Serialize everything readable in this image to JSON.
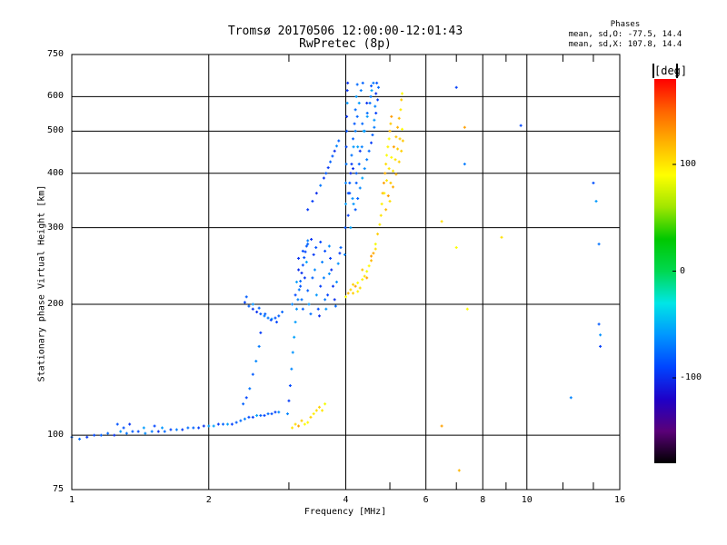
{
  "chart_data": {
    "type": "scatter",
    "title": "Tromsø 20170506 12:00:00-12:01:43",
    "subtitle": "RwPretec (8p)",
    "xlabel": "Frequency [MHz]",
    "ylabel": "Stationary phase Virtual Height [km]",
    "x_scale": "log",
    "y_scale": "log",
    "xlim": [
      1,
      16
    ],
    "ylim": [
      75,
      750
    ],
    "x_ticks": [
      1,
      2,
      4,
      6,
      8,
      10,
      16
    ],
    "x_tick_labels": [
      "1",
      "2",
      "4",
      "6",
      "8",
      "10",
      "16"
    ],
    "x_grid": [
      2,
      4,
      6,
      8,
      10
    ],
    "x_minor_ticks": [
      3,
      5,
      7,
      9,
      12,
      14
    ],
    "y_ticks": [
      75,
      100,
      200,
      300,
      400,
      500,
      600,
      750
    ],
    "y_tick_labels": [
      "75",
      "100",
      "200",
      "300",
      "400",
      "500",
      "600",
      "750"
    ],
    "y_grid": [
      100,
      200,
      300,
      400,
      500,
      600
    ],
    "grid": true,
    "legend_header": "Phases",
    "stats": [
      "mean, sd,O: -77.5, 14.4",
      "mean, sd,X: 107.8, 14.4"
    ],
    "colorbar": {
      "label": "[deg]",
      "range": [
        -180,
        180
      ],
      "ticks": [
        100,
        0,
        -100
      ],
      "tick_labels": [
        "100",
        "0",
        "-100"
      ],
      "colormap": [
        "#000000",
        "#5a0078",
        "#1e00c8",
        "#0044ff",
        "#0096ff",
        "#00e6e6",
        "#00d850",
        "#00c800",
        "#a0e600",
        "#ffff00",
        "#ffb400",
        "#ff6400",
        "#ff0000"
      ]
    },
    "series": [
      {
        "name": "O",
        "phase_mean": -77.5,
        "phase_sd": 14.4,
        "points": [
          [
            1.0,
            99
          ],
          [
            1.04,
            98
          ],
          [
            1.08,
            99
          ],
          [
            1.12,
            100
          ],
          [
            1.16,
            100
          ],
          [
            1.2,
            101
          ],
          [
            1.24,
            100
          ],
          [
            1.28,
            102
          ],
          [
            1.32,
            101
          ],
          [
            1.36,
            102
          ],
          [
            1.4,
            102
          ],
          [
            1.45,
            101
          ],
          [
            1.5,
            102
          ],
          [
            1.55,
            102
          ],
          [
            1.6,
            102
          ],
          [
            1.65,
            103
          ],
          [
            1.7,
            103
          ],
          [
            1.75,
            103
          ],
          [
            1.8,
            104
          ],
          [
            1.85,
            104
          ],
          [
            1.9,
            104
          ],
          [
            1.95,
            105
          ],
          [
            2.0,
            105
          ],
          [
            2.05,
            105
          ],
          [
            2.1,
            106
          ],
          [
            2.15,
            106
          ],
          [
            2.2,
            106
          ],
          [
            2.25,
            106
          ],
          [
            2.3,
            107
          ],
          [
            2.35,
            108
          ],
          [
            2.4,
            109
          ],
          [
            2.45,
            110
          ],
          [
            2.5,
            110
          ],
          [
            2.55,
            111
          ],
          [
            2.6,
            111
          ],
          [
            2.65,
            111
          ],
          [
            2.7,
            112
          ],
          [
            2.75,
            112
          ],
          [
            2.8,
            113
          ],
          [
            2.85,
            113
          ],
          [
            1.26,
            106
          ],
          [
            1.3,
            104
          ],
          [
            1.34,
            106
          ],
          [
            1.44,
            104
          ],
          [
            1.52,
            105
          ],
          [
            1.58,
            104
          ],
          [
            2.38,
            118
          ],
          [
            2.42,
            122
          ],
          [
            2.46,
            128
          ],
          [
            2.5,
            138
          ],
          [
            2.54,
            148
          ],
          [
            2.58,
            160
          ],
          [
            2.6,
            172
          ],
          [
            2.4,
            202
          ],
          [
            2.45,
            198
          ],
          [
            2.5,
            195
          ],
          [
            2.55,
            192
          ],
          [
            2.6,
            190
          ],
          [
            2.65,
            188
          ],
          [
            2.7,
            186
          ],
          [
            2.75,
            185
          ],
          [
            2.8,
            186
          ],
          [
            2.85,
            188
          ],
          [
            2.9,
            192
          ],
          [
            2.42,
            208
          ],
          [
            2.5,
            200
          ],
          [
            2.58,
            196
          ],
          [
            2.66,
            190
          ],
          [
            2.74,
            184
          ],
          [
            2.82,
            182
          ],
          [
            2.98,
            112
          ],
          [
            3.0,
            120
          ],
          [
            3.02,
            130
          ],
          [
            3.04,
            142
          ],
          [
            3.06,
            155
          ],
          [
            3.08,
            168
          ],
          [
            3.1,
            182
          ],
          [
            3.12,
            195
          ],
          [
            3.14,
            205
          ],
          [
            3.16,
            216
          ],
          [
            3.18,
            226
          ],
          [
            3.2,
            236
          ],
          [
            3.22,
            246
          ],
          [
            3.24,
            256
          ],
          [
            3.26,
            264
          ],
          [
            3.28,
            272
          ],
          [
            3.3,
            280
          ],
          [
            3.05,
            200
          ],
          [
            3.1,
            210
          ],
          [
            3.12,
            225
          ],
          [
            3.15,
            240
          ],
          [
            3.18,
            220
          ],
          [
            3.2,
            205
          ],
          [
            3.22,
            195
          ],
          [
            3.25,
            230
          ],
          [
            3.28,
            250
          ],
          [
            3.3,
            215
          ],
          [
            3.32,
            200
          ],
          [
            3.35,
            190
          ],
          [
            3.38,
            230
          ],
          [
            3.4,
            260
          ],
          [
            3.42,
            240
          ],
          [
            3.45,
            210
          ],
          [
            3.48,
            195
          ],
          [
            3.5,
            188
          ],
          [
            3.52,
            220
          ],
          [
            3.55,
            250
          ],
          [
            3.58,
            230
          ],
          [
            3.6,
            205
          ],
          [
            3.62,
            195
          ],
          [
            3.65,
            210
          ],
          [
            3.68,
            235
          ],
          [
            3.7,
            255
          ],
          [
            3.72,
            240
          ],
          [
            3.75,
            220
          ],
          [
            3.78,
            205
          ],
          [
            3.8,
            198
          ],
          [
            3.82,
            225
          ],
          [
            3.85,
            248
          ],
          [
            3.88,
            262
          ],
          [
            3.9,
            270
          ],
          [
            3.15,
            255
          ],
          [
            3.22,
            265
          ],
          [
            3.3,
            275
          ],
          [
            3.36,
            282
          ],
          [
            3.44,
            270
          ],
          [
            3.52,
            278
          ],
          [
            3.6,
            265
          ],
          [
            3.68,
            272
          ],
          [
            3.3,
            330
          ],
          [
            3.38,
            345
          ],
          [
            3.45,
            360
          ],
          [
            3.52,
            375
          ],
          [
            3.58,
            390
          ],
          [
            3.62,
            400
          ],
          [
            3.66,
            412
          ],
          [
            3.7,
            425
          ],
          [
            3.74,
            438
          ],
          [
            3.78,
            450
          ],
          [
            3.82,
            462
          ],
          [
            3.86,
            475
          ],
          [
            3.98,
            260
          ],
          [
            3.99,
            300
          ],
          [
            4.0,
            340
          ],
          [
            4.0,
            380
          ],
          [
            4.01,
            420
          ],
          [
            4.01,
            460
          ],
          [
            4.02,
            500
          ],
          [
            4.02,
            540
          ],
          [
            4.03,
            580
          ],
          [
            4.03,
            620
          ],
          [
            4.04,
            645
          ],
          [
            4.05,
            320
          ],
          [
            4.08,
            360
          ],
          [
            4.1,
            400
          ],
          [
            4.12,
            440
          ],
          [
            4.15,
            480
          ],
          [
            4.18,
            520
          ],
          [
            4.2,
            560
          ],
          [
            4.22,
            600
          ],
          [
            4.24,
            640
          ],
          [
            4.08,
            380
          ],
          [
            4.12,
            420
          ],
          [
            4.16,
            460
          ],
          [
            4.2,
            500
          ],
          [
            4.24,
            540
          ],
          [
            4.28,
            580
          ],
          [
            4.32,
            620
          ],
          [
            4.36,
            645
          ],
          [
            4.1,
            300
          ],
          [
            4.16,
            340
          ],
          [
            4.22,
            380
          ],
          [
            4.28,
            420
          ],
          [
            4.34,
            460
          ],
          [
            4.4,
            500
          ],
          [
            4.46,
            540
          ],
          [
            4.52,
            580
          ],
          [
            4.56,
            620
          ],
          [
            4.6,
            645
          ],
          [
            4.14,
            350
          ],
          [
            4.22,
            400
          ],
          [
            4.3,
            450
          ],
          [
            4.38,
            500
          ],
          [
            4.46,
            550
          ],
          [
            4.54,
            600
          ],
          [
            4.2,
            330
          ],
          [
            4.3,
            370
          ],
          [
            4.4,
            410
          ],
          [
            4.5,
            450
          ],
          [
            4.58,
            490
          ],
          [
            4.62,
            530
          ],
          [
            4.64,
            570
          ],
          [
            4.66,
            610
          ],
          [
            4.68,
            645
          ],
          [
            4.25,
            350
          ],
          [
            4.35,
            390
          ],
          [
            4.45,
            430
          ],
          [
            4.55,
            470
          ],
          [
            4.62,
            510
          ],
          [
            4.66,
            550
          ],
          [
            4.7,
            590
          ],
          [
            4.72,
            630
          ],
          [
            4.05,
            360
          ],
          [
            4.15,
            410
          ],
          [
            4.25,
            460
          ],
          [
            4.35,
            520
          ],
          [
            4.45,
            580
          ],
          [
            4.55,
            635
          ],
          [
            7.0,
            630
          ],
          [
            7.3,
            420
          ],
          [
            9.7,
            515
          ],
          [
            12.5,
            122
          ],
          [
            14.0,
            380
          ],
          [
            14.2,
            345
          ],
          [
            14.4,
            275
          ],
          [
            14.4,
            180
          ],
          [
            14.5,
            170
          ],
          [
            14.5,
            160
          ]
        ]
      },
      {
        "name": "X",
        "phase_mean": 107.8,
        "phase_sd": 14.4,
        "points": [
          [
            3.05,
            104
          ],
          [
            3.1,
            106
          ],
          [
            3.15,
            105
          ],
          [
            3.2,
            108
          ],
          [
            3.25,
            106
          ],
          [
            3.3,
            107
          ],
          [
            3.35,
            110
          ],
          [
            3.4,
            112
          ],
          [
            3.45,
            114
          ],
          [
            3.5,
            116
          ],
          [
            3.55,
            114
          ],
          [
            3.6,
            118
          ],
          [
            4.0,
            208
          ],
          [
            4.05,
            212
          ],
          [
            4.1,
            216
          ],
          [
            4.15,
            212
          ],
          [
            4.2,
            220
          ],
          [
            4.25,
            224
          ],
          [
            4.3,
            218
          ],
          [
            4.35,
            228
          ],
          [
            4.4,
            232
          ],
          [
            4.45,
            238
          ],
          [
            4.5,
            245
          ],
          [
            4.55,
            252
          ],
          [
            4.6,
            262
          ],
          [
            4.65,
            275
          ],
          [
            4.7,
            290
          ],
          [
            4.75,
            305
          ],
          [
            4.78,
            320
          ],
          [
            4.8,
            340
          ],
          [
            4.82,
            360
          ],
          [
            4.15,
            222
          ],
          [
            4.25,
            214
          ],
          [
            4.35,
            240
          ],
          [
            4.45,
            230
          ],
          [
            4.55,
            258
          ],
          [
            4.65,
            268
          ],
          [
            4.85,
            380
          ],
          [
            4.88,
            400
          ],
          [
            4.9,
            420
          ],
          [
            4.92,
            440
          ],
          [
            4.95,
            460
          ],
          [
            4.98,
            480
          ],
          [
            5.0,
            500
          ],
          [
            5.02,
            520
          ],
          [
            5.04,
            540
          ],
          [
            4.86,
            360
          ],
          [
            4.92,
            385
          ],
          [
            4.98,
            410
          ],
          [
            5.04,
            435
          ],
          [
            5.1,
            460
          ],
          [
            5.16,
            485
          ],
          [
            5.2,
            510
          ],
          [
            5.24,
            535
          ],
          [
            5.28,
            560
          ],
          [
            5.3,
            590
          ],
          [
            5.32,
            610
          ],
          [
            4.9,
            330
          ],
          [
            4.96,
            355
          ],
          [
            5.02,
            380
          ],
          [
            5.08,
            405
          ],
          [
            5.14,
            430
          ],
          [
            5.2,
            455
          ],
          [
            5.26,
            480
          ],
          [
            5.32,
            505
          ],
          [
            5.0,
            345
          ],
          [
            5.08,
            372
          ],
          [
            5.16,
            398
          ],
          [
            5.24,
            425
          ],
          [
            5.3,
            450
          ],
          [
            5.34,
            475
          ],
          [
            6.5,
            310
          ],
          [
            7.0,
            270
          ],
          [
            7.4,
            195
          ],
          [
            8.8,
            285
          ],
          [
            6.5,
            105
          ],
          [
            7.1,
            83
          ],
          [
            7.3,
            510
          ]
        ]
      }
    ]
  }
}
